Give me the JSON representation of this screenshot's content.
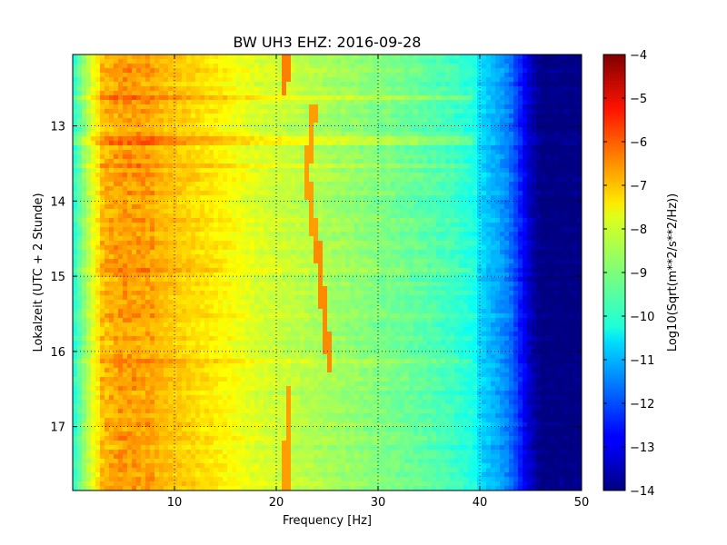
{
  "chart_data": {
    "type": "heatmap",
    "title": "BW UH3 EHZ: 2016-09-28",
    "xlabel": "Frequency [Hz]",
    "ylabel": "Lokalzeit (UTC + 2 Stunde)",
    "xlim": [
      0,
      50
    ],
    "ylim": [
      12.05,
      17.85
    ],
    "y_inverted": true,
    "grid": true,
    "x_ticks": [
      10,
      20,
      30,
      40,
      50
    ],
    "x_tick_labels": [
      "10",
      "20",
      "30",
      "40",
      "50"
    ],
    "y_ticks": [
      13,
      14,
      15,
      16,
      17
    ],
    "y_tick_labels": [
      "13",
      "14",
      "15",
      "16",
      "17"
    ],
    "colormap": "jet",
    "colorbar": {
      "label": "Log10(Sqrt(m**2/s**2/Hz))",
      "range": [
        -14,
        -4
      ],
      "ticks": [
        -4,
        -5,
        -6,
        -7,
        -8,
        -9,
        -10,
        -11,
        -12,
        -13,
        -14
      ],
      "tick_labels": [
        "−4",
        "−5",
        "−6",
        "−7",
        "−8",
        "−9",
        "−10",
        "−11",
        "−12",
        "−13",
        "−14"
      ]
    },
    "spectral_profile": {
      "frequency_hz": [
        0,
        1,
        2,
        3,
        5,
        8,
        12,
        15,
        18,
        22,
        26,
        30,
        34,
        37,
        39.5,
        40,
        42,
        43,
        44,
        45,
        46,
        50
      ],
      "level": [
        -10,
        -9,
        -8,
        -7.2,
        -6.9,
        -7.0,
        -7.4,
        -7.7,
        -8.1,
        -8.4,
        -8.7,
        -9.0,
        -9.3,
        -9.6,
        -10.0,
        -10.6,
        -11.2,
        -11.6,
        -12.5,
        -13.4,
        -14,
        -14
      ]
    },
    "spectral_lines": [
      {
        "time": [
          12.05,
          12.6
        ],
        "frequency_hz": [
          21.0,
          20.8
        ],
        "level": -6.5
      },
      {
        "time": [
          12.7,
          13.6
        ],
        "frequency_hz": [
          23.8,
          23.0
        ],
        "level": -6.8
      },
      {
        "time": [
          13.6,
          14.5
        ],
        "frequency_hz": [
          23.0,
          23.8
        ],
        "level": -6.8
      },
      {
        "time": [
          14.5,
          16.3
        ],
        "frequency_hz": [
          24.0,
          25.3
        ],
        "level": -6.6
      },
      {
        "time": [
          16.45,
          17.85
        ],
        "frequency_hz": [
          21.2,
          21.0
        ],
        "level": -6.8
      }
    ],
    "broadband_events_time": [
      12.6,
      13.2,
      13.55,
      14.9,
      16.15
    ]
  }
}
